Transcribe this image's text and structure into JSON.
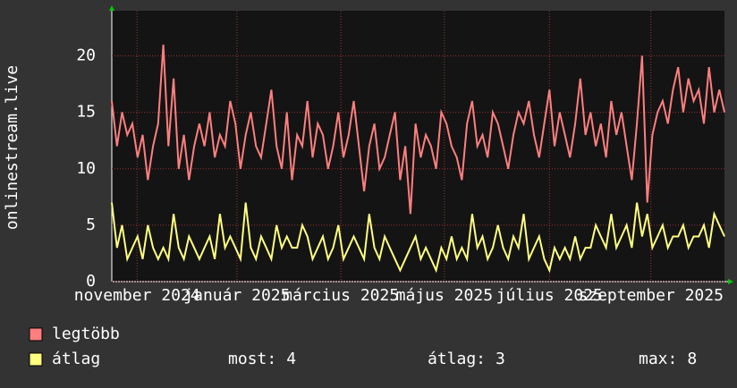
{
  "chart_data": {
    "type": "line",
    "y_label": "onlinestream.live",
    "xlim": [
      0,
      119
    ],
    "xticks": [
      {
        "value": 4.9,
        "label": "november 2024"
      },
      {
        "value": 24.3,
        "label": "január 2025"
      },
      {
        "value": 44.5,
        "label": "március 2025"
      },
      {
        "value": 64.6,
        "label": "május 2025"
      },
      {
        "value": 85,
        "label": "július 2025"
      },
      {
        "value": 104.7,
        "label": "szeptember 2025"
      }
    ],
    "ylim": [
      0,
      24
    ],
    "yticks": [
      0,
      5,
      10,
      15,
      20
    ],
    "grid": true,
    "series": [
      {
        "name": "legtöbb",
        "color": "#ff7f7f",
        "values": [
          16,
          12,
          15,
          13,
          14,
          11,
          13,
          9,
          12,
          14,
          21,
          12,
          18,
          10,
          13,
          9,
          12,
          14,
          12,
          15,
          11,
          13,
          12,
          16,
          14,
          10,
          13,
          15,
          12,
          11,
          14,
          17,
          12,
          10,
          15,
          9,
          13,
          12,
          16,
          11,
          14,
          13,
          10,
          12,
          15,
          11,
          13,
          16,
          12,
          8,
          12,
          14,
          10,
          11,
          13,
          15,
          9,
          12,
          6,
          14,
          11,
          13,
          12,
          10,
          15,
          14,
          12,
          11,
          9,
          14,
          16,
          12,
          13,
          11,
          15,
          14,
          12,
          10,
          13,
          15,
          14,
          16,
          13,
          11,
          14,
          17,
          12,
          15,
          13,
          11,
          14,
          18,
          13,
          15,
          12,
          14,
          11,
          16,
          13,
          15,
          12,
          9,
          14,
          20,
          7,
          13,
          15,
          16,
          14,
          17,
          19,
          15,
          18,
          16,
          17,
          14,
          19,
          15,
          17,
          15
        ]
      },
      {
        "name": "átlag",
        "color": "#ffff80",
        "values": [
          7,
          3,
          5,
          2,
          3,
          4,
          2,
          5,
          3,
          2,
          3,
          2,
          6,
          3,
          2,
          4,
          3,
          2,
          3,
          4,
          2,
          6,
          3,
          4,
          3,
          2,
          7,
          3,
          2,
          4,
          3,
          2,
          5,
          3,
          4,
          3,
          3,
          5,
          4,
          2,
          3,
          4,
          2,
          3,
          5,
          2,
          3,
          4,
          3,
          2,
          6,
          3,
          2,
          4,
          3,
          2,
          1,
          2,
          3,
          4,
          2,
          3,
          2,
          1,
          3,
          2,
          4,
          2,
          3,
          2,
          6,
          3,
          4,
          2,
          3,
          5,
          3,
          2,
          4,
          3,
          6,
          2,
          3,
          4,
          2,
          1,
          3,
          2,
          3,
          2,
          4,
          2,
          3,
          3,
          5,
          4,
          3,
          6,
          3,
          4,
          5,
          3,
          7,
          4,
          6,
          3,
          4,
          5,
          3,
          4,
          4,
          5,
          3,
          4,
          4,
          5,
          3,
          6,
          5,
          4
        ]
      }
    ],
    "stats": [
      {
        "label": "most:",
        "value": 4
      },
      {
        "label": "átlag:",
        "value": 3
      },
      {
        "label": "max:",
        "value": 8
      }
    ]
  }
}
